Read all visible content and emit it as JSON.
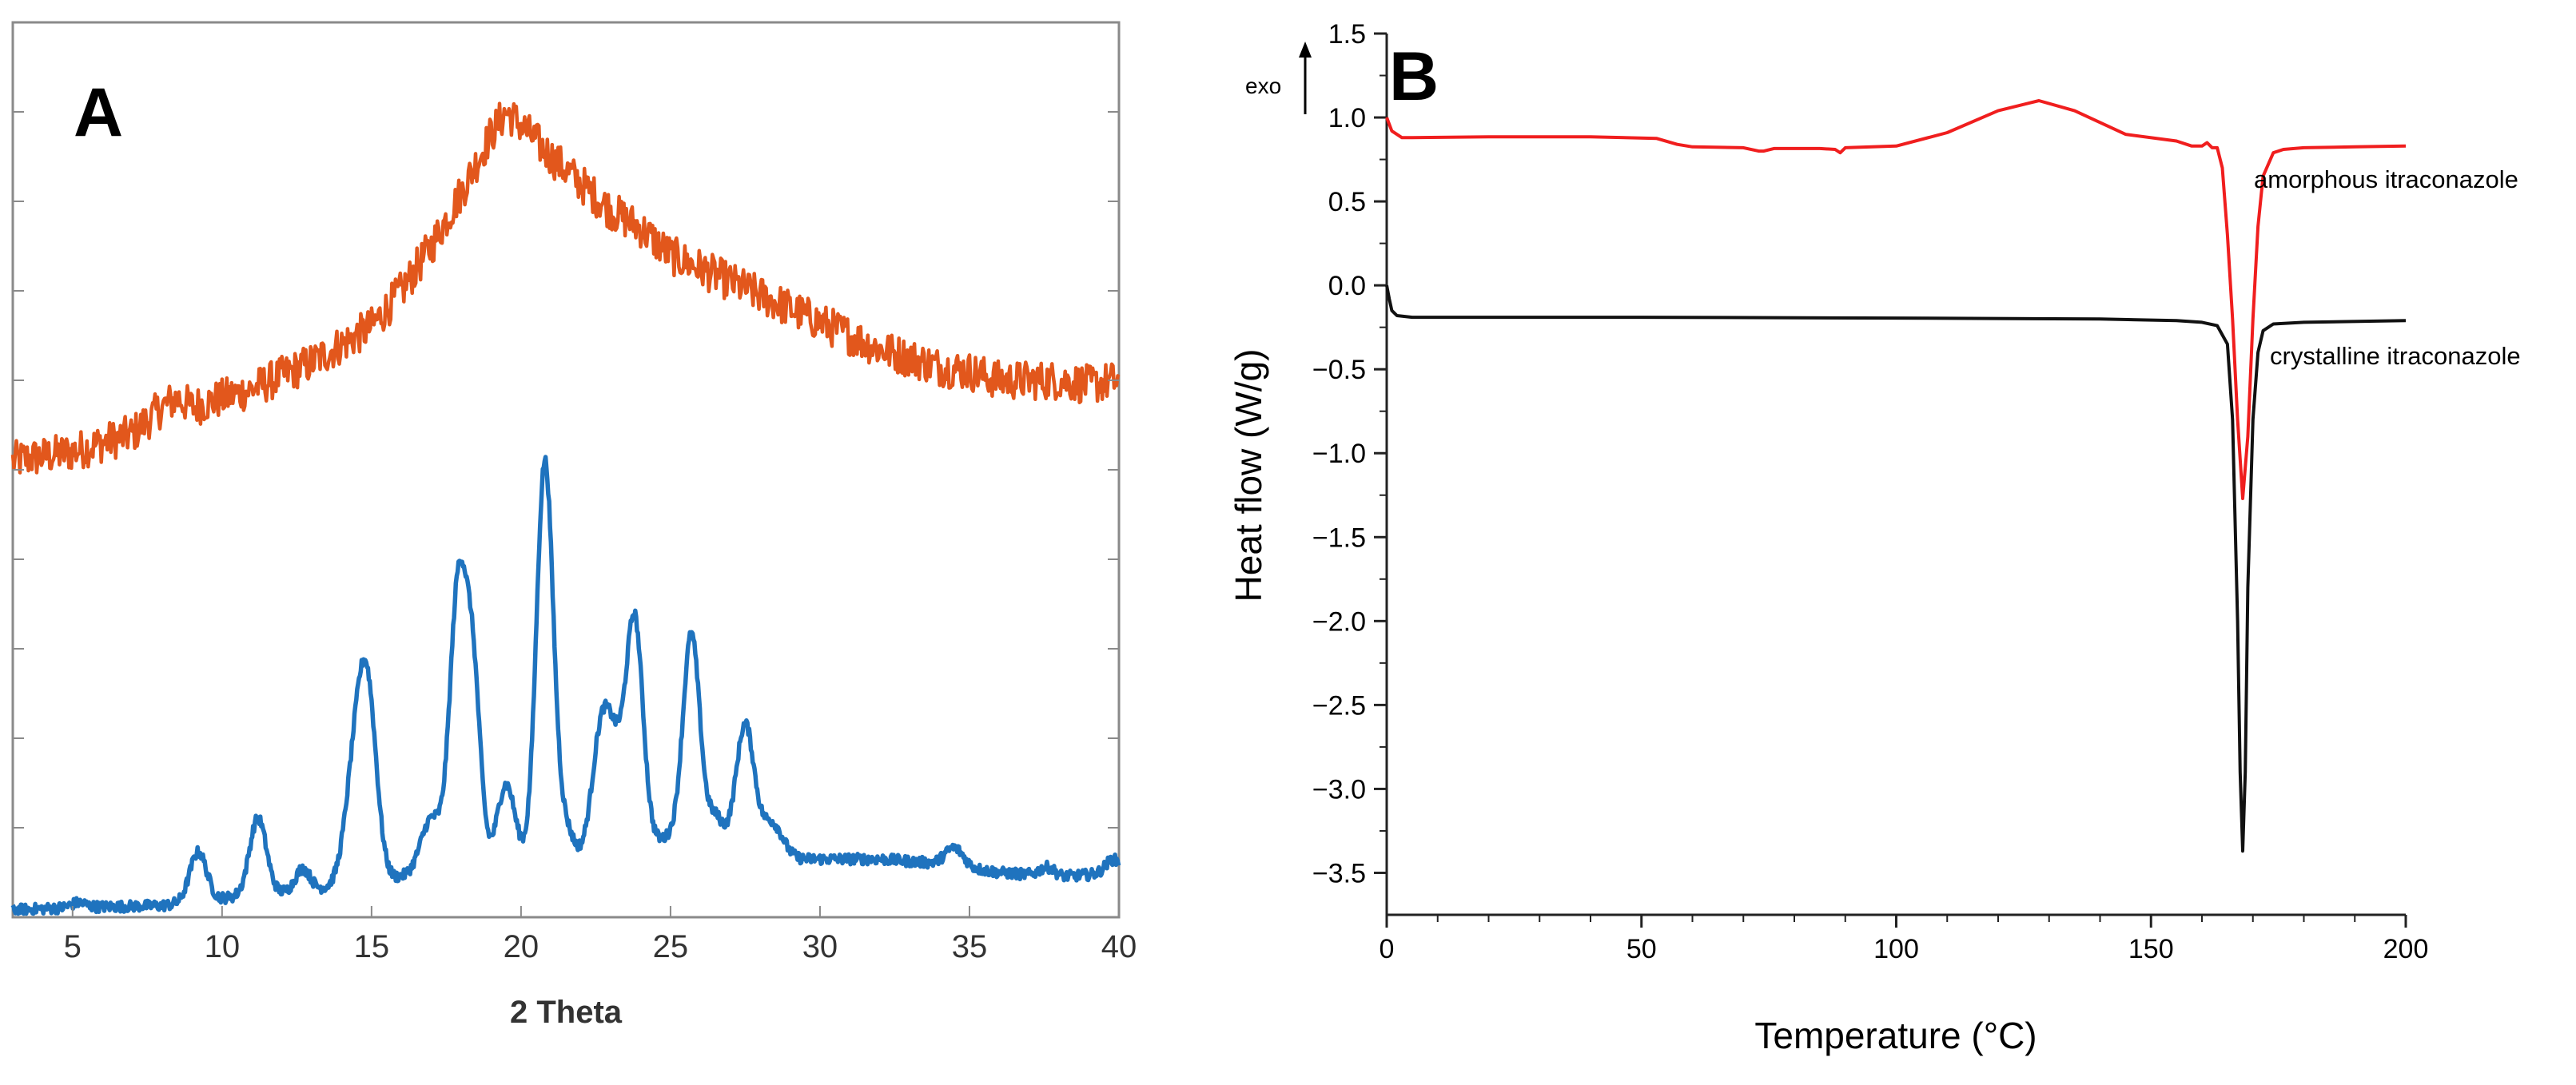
{
  "chart_data": [
    {
      "panel_label": "A",
      "type": "line",
      "xlabel": "2 Theta",
      "ylabel": "",
      "xlim": [
        3,
        40
      ],
      "ylim": [
        0,
        100
      ],
      "xticks": [
        5,
        10,
        15,
        20,
        25,
        30,
        35,
        40
      ],
      "y_tick_labels": false,
      "grid": false,
      "series": [
        {
          "color": "#E2571C",
          "noise": 2.2,
          "x": [
            3,
            5,
            7,
            8,
            8.5,
            9,
            10,
            11,
            12,
            13,
            14,
            15,
            16,
            17,
            18,
            19,
            19.5,
            20,
            21,
            22,
            23,
            24,
            25,
            26,
            27,
            28,
            29,
            30,
            31,
            32,
            33,
            34,
            35,
            36,
            37,
            38,
            39,
            40
          ],
          "y": [
            51,
            52,
            54,
            57,
            58,
            57,
            58,
            59,
            60.5,
            62,
            64,
            66,
            70,
            75,
            81,
            87.5,
            90,
            88.5,
            85,
            82,
            79,
            77,
            74,
            72.5,
            71,
            69.5,
            68,
            66.5,
            65,
            63.5,
            62.5,
            61.5,
            61,
            60,
            60,
            60,
            59.5,
            60
          ]
        },
        {
          "color": "#1F73BE",
          "noise": 0.6,
          "baseline_x": [
            3,
            5,
            8,
            11,
            13,
            15,
            17,
            18.5,
            20,
            21,
            23,
            25,
            27,
            28.5,
            30,
            32,
            34,
            36,
            38,
            40
          ],
          "baseline_y": [
            0.8,
            1.1,
            1.3,
            2.5,
            3,
            4,
            5,
            5.5,
            6,
            6,
            7,
            9,
            8,
            6.5,
            6.5,
            6.5,
            6,
            5,
            4.5,
            5
          ],
          "peaks": [
            {
              "x": 5.2,
              "height": 0.5,
              "width": 0.25
            },
            {
              "x": 9.2,
              "height": 5.5,
              "width": 0.28
            },
            {
              "x": 11.2,
              "height": 8.5,
              "width": 0.28
            },
            {
              "x": 12.7,
              "height": 2.5,
              "width": 0.25
            },
            {
              "x": 14.5,
              "height": 14,
              "width": 0.35
            },
            {
              "x": 14.9,
              "height": 16,
              "width": 0.3
            },
            {
              "x": 17.0,
              "height": 6,
              "width": 0.35
            },
            {
              "x": 17.9,
              "height": 31,
              "width": 0.28
            },
            {
              "x": 18.4,
              "height": 20,
              "width": 0.25
            },
            {
              "x": 19.5,
              "height": 9,
              "width": 0.3
            },
            {
              "x": 20.8,
              "height": 45,
              "width": 0.28
            },
            {
              "x": 21.5,
              "height": 3.5,
              "width": 0.25
            },
            {
              "x": 22.7,
              "height": 14,
              "width": 0.32
            },
            {
              "x": 23.2,
              "height": 8,
              "width": 0.3
            },
            {
              "x": 23.8,
              "height": 25,
              "width": 0.28
            },
            {
              "x": 25.7,
              "height": 23,
              "width": 0.28
            },
            {
              "x": 26.5,
              "height": 3,
              "width": 0.25
            },
            {
              "x": 27.5,
              "height": 14,
              "width": 0.3
            },
            {
              "x": 28.4,
              "height": 4,
              "width": 0.35
            },
            {
              "x": 34.5,
              "height": 2,
              "width": 0.3
            },
            {
              "x": 37.6,
              "height": 1,
              "width": 0.25
            },
            {
              "x": 39.8,
              "height": 1.5,
              "width": 0.25
            }
          ]
        }
      ]
    },
    {
      "panel_label": "B",
      "type": "line",
      "xlabel": "Temperature (°C)",
      "ylabel": "Heat flow (W/g)",
      "xlim": [
        0,
        200
      ],
      "ylim": [
        -3.75,
        1.5
      ],
      "xticks": [
        0,
        50,
        100,
        150,
        200
      ],
      "yticks": [
        1.5,
        1.0,
        0.5,
        0.0,
        -0.5,
        -1.0,
        -1.5,
        -2.0,
        -2.5,
        -3.0,
        -3.5
      ],
      "ytick_labels": [
        "1.5",
        "1.0",
        "0.5",
        "0.0",
        "−0.5",
        "−1.0",
        "−1.5",
        "−2.0",
        "−2.5",
        "−3.0",
        "−3.5"
      ],
      "grid": false,
      "exo_label": "exo",
      "series": [
        {
          "name": "amorphous itraconazole",
          "color": "#F01E1E",
          "x": [
            0,
            1,
            3,
            5,
            20,
            40,
            53,
            57,
            60,
            70,
            73,
            74,
            76,
            85,
            88,
            89,
            90,
            100,
            110,
            120,
            128,
            135,
            145,
            155,
            158,
            160,
            161,
            162,
            163,
            164,
            165,
            166,
            167,
            168,
            169,
            170,
            171,
            172,
            174,
            176,
            180,
            190,
            200
          ],
          "y": [
            1.0,
            0.92,
            0.88,
            0.88,
            0.885,
            0.885,
            0.875,
            0.84,
            0.825,
            0.82,
            0.8,
            0.8,
            0.815,
            0.815,
            0.81,
            0.79,
            0.82,
            0.83,
            0.91,
            1.04,
            1.1,
            1.04,
            0.9,
            0.86,
            0.83,
            0.83,
            0.85,
            0.82,
            0.82,
            0.7,
            0.3,
            -0.2,
            -0.8,
            -1.27,
            -0.9,
            -0.2,
            0.35,
            0.65,
            0.79,
            0.81,
            0.82,
            0.825,
            0.83
          ]
        },
        {
          "name": "crystalline itraconazole",
          "color": "#111111",
          "x": [
            0,
            0.5,
            1,
            2,
            5,
            50,
            100,
            140,
            155,
            160,
            163,
            165,
            166,
            167,
            167.5,
            168,
            168.5,
            169,
            170,
            171,
            172,
            174,
            180,
            200
          ],
          "y": [
            0,
            -0.08,
            -0.15,
            -0.18,
            -0.19,
            -0.19,
            -0.195,
            -0.2,
            -0.21,
            -0.22,
            -0.24,
            -0.35,
            -0.8,
            -2.0,
            -2.9,
            -3.37,
            -2.9,
            -1.8,
            -0.8,
            -0.4,
            -0.27,
            -0.23,
            -0.22,
            -0.21
          ]
        }
      ]
    }
  ]
}
